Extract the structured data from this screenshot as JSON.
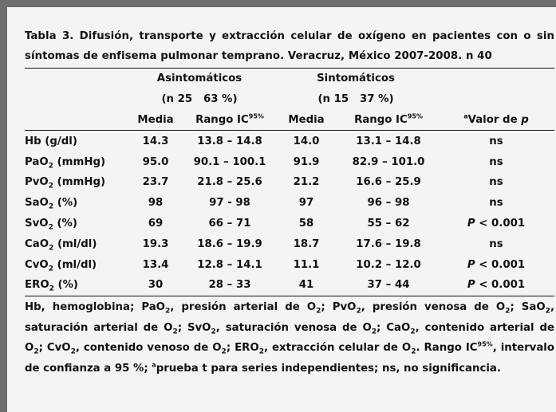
{
  "caption": "Tabla 3. Difusión, transporte y extracción celular de oxígeno en pacientes con o sin síntomas de enfisema pulmonar temprano. Veracruz, México 2007-2008. n 40",
  "groups": [
    {
      "name": "Asintomáticos",
      "sub": "(n 25   63 %)"
    },
    {
      "name": "Sintomáticos",
      "sub": "(n 15   37 %)"
    }
  ],
  "columns": {
    "media": "Media",
    "rango": "Rango IC",
    "rango_sup": "95%",
    "p_sup": "a",
    "p_label": "Valor de ",
    "p_var": "p"
  },
  "rows": [
    {
      "base": "Hb",
      "sub": "",
      "unit": " (g/dl)",
      "m1": "14.3",
      "r1": "13.8 – 14.8",
      "m2": "14.0",
      "r2": "13.1 – 14.8",
      "p_prefix": "",
      "p": "ns"
    },
    {
      "base": "PaO",
      "sub": "2",
      "unit": " (mmHg)",
      "m1": "95.0",
      "r1": "90.1 – 100.1",
      "m2": "91.9",
      "r2": "82.9 – 101.0",
      "p_prefix": "",
      "p": "ns"
    },
    {
      "base": "PvO",
      "sub": "2",
      "unit": " (mmHg)",
      "m1": "23.7",
      "r1": "21.8 – 25.6",
      "m2": "21.2",
      "r2": "16.6 – 25.9",
      "p_prefix": "",
      "p": "ns"
    },
    {
      "base": "SaO",
      "sub": "2",
      "unit": " (%)",
      "m1": "98",
      "r1": "97 - 98",
      "m2": "97",
      "r2": "96 – 98",
      "p_prefix": "",
      "p": "ns"
    },
    {
      "base": "SvO",
      "sub": "2",
      "unit": " (%)",
      "m1": "69",
      "r1": "66 – 71",
      "m2": "58",
      "r2": "55 – 62",
      "p_prefix": "P",
      "p": " < 0.001"
    },
    {
      "base": "CaO",
      "sub": "2",
      "unit": " (ml/dl)",
      "m1": "19.3",
      "r1": "18.6 – 19.9",
      "m2": "18.7",
      "r2": "17.6 – 19.8",
      "p_prefix": "",
      "p": "ns"
    },
    {
      "base": "CvO",
      "sub": "2",
      "unit": " (ml/dl)",
      "m1": "13.4",
      "r1": "12.8 – 14.1",
      "m2": "11.1",
      "r2": "10.2 – 12.0",
      "p_prefix": "P",
      "p": " < 0.001"
    },
    {
      "base": "ERO",
      "sub": "2",
      "unit": " (%)",
      "m1": "30",
      "r1": "28 – 33",
      "m2": "41",
      "r2": "37 – 44",
      "p_prefix": "P",
      "p": " < 0.001"
    }
  ],
  "footnote": {
    "p1": "Hb, hemoglobina; PaO",
    "s1": "2",
    "p2": ", presión arterial de O",
    "s2": "2",
    "p3": "; PvO",
    "s3": "2",
    "p4": ", presión venosa de O",
    "s4": "2",
    "p5": "; SaO",
    "s5": "2",
    "p6": ", saturación arterial de O",
    "s6": "2",
    "p7": "; SvO",
    "s7": "2",
    "p8": ", saturación venosa de O",
    "s8": "2",
    "p9": "; CaO",
    "s9": "2",
    "p10": ", contenido arterial de O",
    "s10": "2",
    "p11": "; CvO",
    "s11": "2",
    "p12": ", contenido venoso de O",
    "s12": "2",
    "p13": "; ERO",
    "s13": "2",
    "p14": ", extracción celular de O",
    "s14": "2",
    "p15": ". Rango IC",
    "sup1": "95%",
    "p16": ", intervalo de confianza a 95 %; ",
    "sup2": "a",
    "p17": "prueba t para series independientes; ns, no significancia."
  }
}
